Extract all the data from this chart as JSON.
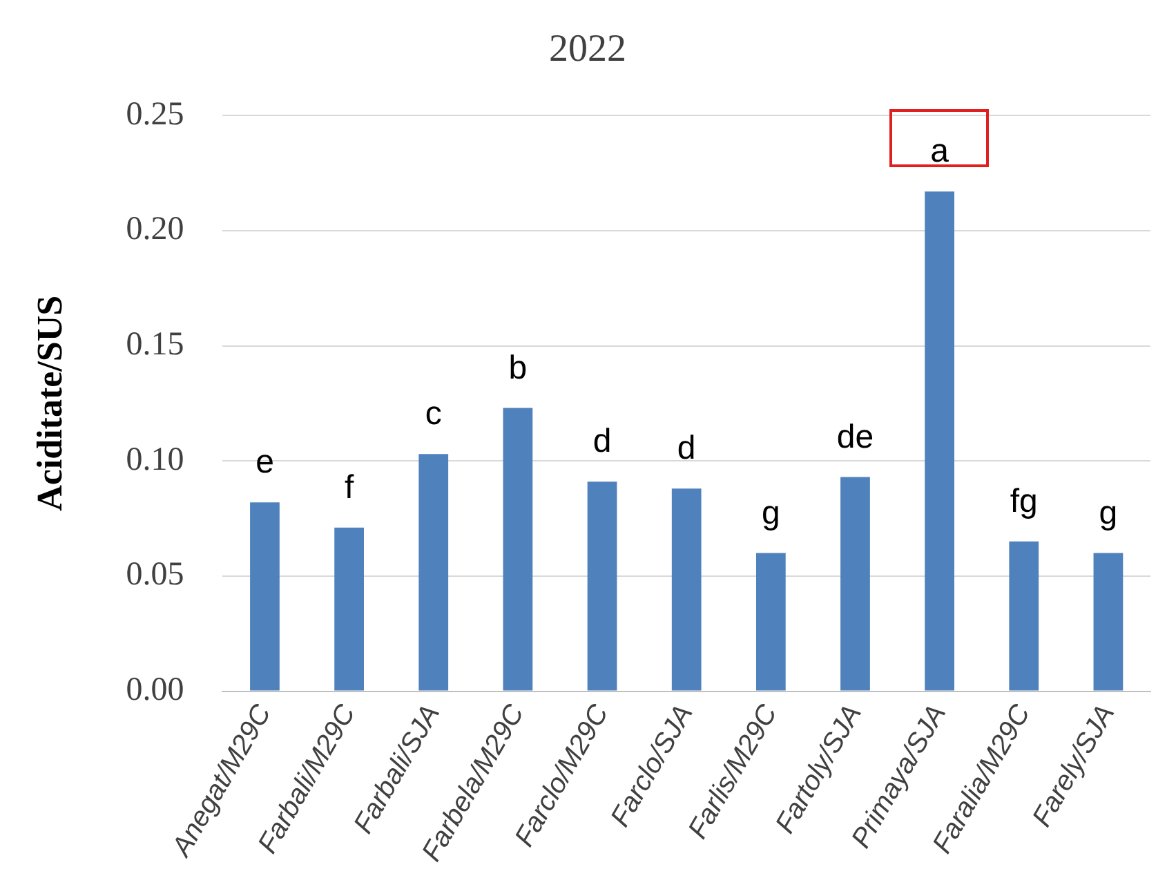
{
  "chart_data": {
    "type": "bar",
    "title": "2022",
    "ylabel": "Aciditate/SUS",
    "categories": [
      "Anegat/M29C",
      "Farbali/M29C",
      "Farbali/SJA",
      "Farbela/M29C",
      "Farclo/M29C",
      "Farclo/SJA",
      "Farlis/M29C",
      "Fartoly/SJA",
      "Primaya/SJA",
      "Faralia/M29C",
      "Farely/SJA"
    ],
    "values": [
      0.082,
      0.071,
      0.103,
      0.123,
      0.091,
      0.088,
      0.06,
      0.093,
      0.217,
      0.065,
      0.06
    ],
    "color": "#4f81bd",
    "ylim": [
      0,
      0.25
    ],
    "yticks": [
      {
        "value": 0,
        "label": "0.00"
      },
      {
        "value": 0.05,
        "label": "0.05"
      },
      {
        "value": 0.1,
        "label": "0.10"
      },
      {
        "value": 0.15,
        "label": "0.15"
      },
      {
        "value": 0.2,
        "label": "0.20"
      },
      {
        "value": 0.25,
        "label": "0.25"
      }
    ],
    "grid": "y",
    "annotations": [
      {
        "text": "e",
        "x": "Anegat/M29C",
        "y": 0.082
      },
      {
        "text": "f",
        "x": "Farbali/M29C",
        "y": 0.071
      },
      {
        "text": "c",
        "x": "Farbali/SJA",
        "y": 0.103
      },
      {
        "text": "b",
        "x": "Farbela/M29C",
        "y": 0.123
      },
      {
        "text": "d",
        "x": "Farclo/M29C",
        "y": 0.091
      },
      {
        "text": "d",
        "x": "Farclo/SJA",
        "y": 0.088
      },
      {
        "text": "g",
        "x": "Farlis/M29C",
        "y": 0.06
      },
      {
        "text": "de",
        "x": "Fartoly/SJA",
        "y": 0.093
      },
      {
        "text": "a",
        "x": "Primaya/SJA",
        "y": 0.217
      },
      {
        "text": "fg",
        "x": "Faralia/M29C",
        "y": 0.065
      },
      {
        "text": "g",
        "x": "Farely/SJA",
        "y": 0.06
      }
    ]
  }
}
